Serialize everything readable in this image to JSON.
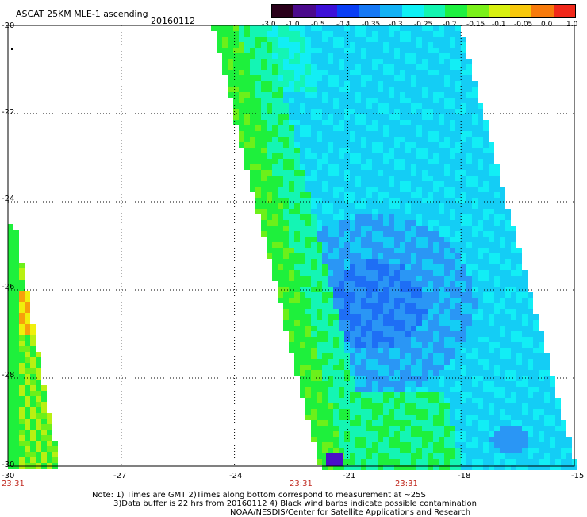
{
  "header": {
    "title": "ASCAT 25KM MLE-1 ascending",
    "date": "20160112"
  },
  "colorbar": {
    "labels": [
      "-3.0",
      "-1.0",
      "-0.5",
      "-0.4",
      "-0.35",
      "-0.3",
      "-0.25",
      "-0.2",
      "-0.15",
      "-0.1",
      "-0.05",
      "0.0",
      "1.0"
    ],
    "colors": [
      "#2a001a",
      "#4b0a8c",
      "#3d10d8",
      "#0a3ef5",
      "#1678f5",
      "#12b2f5",
      "#0ef0f5",
      "#12f5b0",
      "#1ef040",
      "#7af01a",
      "#d8f010",
      "#f7c80c",
      "#f77a0c",
      "#f0281a"
    ]
  },
  "map": {
    "lat_ticks": [
      "-20",
      "-22",
      "-24",
      "-26",
      "-28",
      "-30"
    ],
    "lon_ticks": [
      "-30",
      "-27",
      "-24",
      "-21",
      "-18",
      "-15"
    ],
    "pass_times": [
      "23:31",
      "23:31",
      "23:31"
    ],
    "palette": {
      "deep": "#1e6ef5",
      "blue": "#2a96f5",
      "lightblue": "#14cdf5",
      "cyan": "#12eef5",
      "teal": "#14f5b4",
      "green": "#1ef03c",
      "lime": "#6cf01a",
      "yellowgreen": "#b8f012",
      "yellow": "#f0f00c",
      "orange": "#f7a00c",
      "purple": "#4a10c8"
    }
  },
  "notes": {
    "line1": "Note: 1) Times are GMT 2)Times along bottom correspond to measurement at ~25S",
    "line2": "3)Data buffer is 22 hrs from 20160112 4) Black wind barbs indicate possible contamination",
    "line3": "NOAA/NESDIS/Center for Satellite Applications and Research"
  }
}
